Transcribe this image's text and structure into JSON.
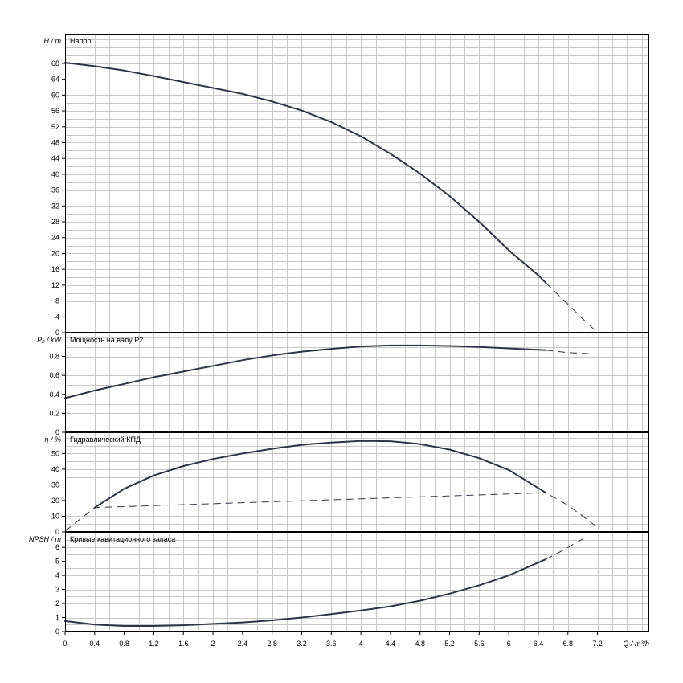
{
  "chart_data": {
    "type": "line",
    "x_axis": {
      "label": "Q / m³/h",
      "ticks": [
        "0",
        "0.4",
        "0.8",
        "1.2",
        "1.6",
        "2",
        "2.4",
        "2.8",
        "3.2",
        "3.6",
        "4",
        "4.4",
        "4.8",
        "5.2",
        "5.6",
        "6",
        "6.4",
        "6.8",
        "7.2"
      ],
      "xlim": [
        0,
        7.9
      ],
      "grid_step": 0.2
    },
    "panels": [
      {
        "id": "head",
        "title": "Напор",
        "ylabel": "H / m",
        "ylim": [
          0,
          75.5
        ],
        "grid_step": 2,
        "yticks": [
          "0",
          "4",
          "8",
          "12",
          "16",
          "20",
          "24",
          "28",
          "32",
          "36",
          "40",
          "44",
          "48",
          "52",
          "56",
          "60",
          "64",
          "68"
        ],
        "solid": [
          [
            0,
            68.2
          ],
          [
            0.4,
            67.3
          ],
          [
            0.8,
            66.2
          ],
          [
            1.2,
            64.8
          ],
          [
            1.6,
            63.3
          ],
          [
            2,
            61.8
          ],
          [
            2.4,
            60.3
          ],
          [
            2.8,
            58.4
          ],
          [
            3.2,
            56.1
          ],
          [
            3.6,
            53.2
          ],
          [
            4,
            49.6
          ],
          [
            4.4,
            45.2
          ],
          [
            4.8,
            40.2
          ],
          [
            5.2,
            34.5
          ],
          [
            5.6,
            28.0
          ],
          [
            6,
            20.8
          ],
          [
            6.4,
            14.5
          ],
          [
            6.5,
            12.6
          ]
        ],
        "dashed": [
          [
            6.5,
            12.6
          ],
          [
            6.8,
            7.2
          ],
          [
            7.0,
            3.5
          ],
          [
            7.2,
            0
          ]
        ]
      },
      {
        "id": "power",
        "title": "Мощность на валу P2",
        "ylabel": "P₂ / kW",
        "ylim": [
          0,
          1.05
        ],
        "grid_step": 0.1,
        "yticks": [
          "0",
          "0.2",
          "0.4",
          "0.6",
          "0.8"
        ],
        "solid": [
          [
            0,
            0.36
          ],
          [
            0.4,
            0.44
          ],
          [
            0.8,
            0.51
          ],
          [
            1.2,
            0.58
          ],
          [
            1.6,
            0.64
          ],
          [
            2,
            0.7
          ],
          [
            2.4,
            0.76
          ],
          [
            2.8,
            0.81
          ],
          [
            3.2,
            0.85
          ],
          [
            3.6,
            0.88
          ],
          [
            4,
            0.905
          ],
          [
            4.4,
            0.915
          ],
          [
            4.8,
            0.915
          ],
          [
            5.2,
            0.91
          ],
          [
            5.6,
            0.9
          ],
          [
            6,
            0.885
          ],
          [
            6.5,
            0.865
          ]
        ],
        "dashed": [
          [
            6.5,
            0.865
          ],
          [
            6.8,
            0.84
          ],
          [
            7.2,
            0.825
          ]
        ]
      },
      {
        "id": "efficiency",
        "title": "Гидравлический КПД",
        "ylabel": "η / %",
        "ylim": [
          0,
          63.5
        ],
        "grid_step": 5,
        "yticks": [
          "0",
          "10",
          "20",
          "30",
          "40",
          "50"
        ],
        "solid": [
          [
            0.4,
            15.5
          ],
          [
            0.8,
            27.5
          ],
          [
            1.2,
            36
          ],
          [
            1.6,
            42
          ],
          [
            2,
            46.5
          ],
          [
            2.4,
            50
          ],
          [
            2.8,
            53
          ],
          [
            3.2,
            55.5
          ],
          [
            3.6,
            57
          ],
          [
            4,
            58
          ],
          [
            4.4,
            57.8
          ],
          [
            4.8,
            56
          ],
          [
            5.2,
            52.5
          ],
          [
            5.6,
            47
          ],
          [
            6,
            39.5
          ],
          [
            6.5,
            25
          ]
        ],
        "dashed": [
          [
            0,
            0.5
          ],
          [
            0.4,
            15.5
          ],
          [
            6.5,
            25
          ],
          [
            6.8,
            17
          ],
          [
            7.2,
            3
          ]
        ]
      },
      {
        "id": "npsh",
        "title": "Кривые кавитационного запаса",
        "ylabel": "NPSH / m",
        "ylim": [
          0,
          7.1
        ],
        "grid_step": 0.5,
        "yticks": [
          "0",
          "1",
          "2",
          "3",
          "4",
          "5",
          "6"
        ],
        "solid": [
          [
            0,
            0.75
          ],
          [
            0.4,
            0.5
          ],
          [
            0.8,
            0.4
          ],
          [
            1.2,
            0.4
          ],
          [
            1.6,
            0.45
          ],
          [
            2,
            0.55
          ],
          [
            2.4,
            0.65
          ],
          [
            2.8,
            0.8
          ],
          [
            3.2,
            1.0
          ],
          [
            3.6,
            1.25
          ],
          [
            4,
            1.5
          ],
          [
            4.4,
            1.8
          ],
          [
            4.8,
            2.2
          ],
          [
            5.2,
            2.7
          ],
          [
            5.6,
            3.3
          ],
          [
            6,
            4.0
          ],
          [
            6.5,
            5.15
          ]
        ],
        "dashed": [
          [
            6.5,
            5.15
          ],
          [
            6.7,
            5.7
          ],
          [
            7.0,
            6.6
          ]
        ]
      }
    ]
  }
}
